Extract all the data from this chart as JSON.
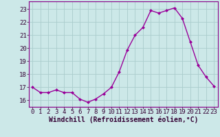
{
  "x": [
    0,
    1,
    2,
    3,
    4,
    5,
    6,
    7,
    8,
    9,
    10,
    11,
    12,
    13,
    14,
    15,
    16,
    17,
    18,
    19,
    20,
    21,
    22,
    23
  ],
  "y": [
    17.0,
    16.6,
    16.6,
    16.8,
    16.6,
    16.6,
    16.1,
    15.85,
    16.1,
    16.5,
    17.0,
    18.2,
    19.85,
    21.0,
    21.6,
    22.9,
    22.7,
    22.9,
    23.1,
    22.3,
    20.5,
    18.7,
    17.8,
    17.1
  ],
  "line_color": "#990099",
  "marker": "D",
  "marker_size": 2.0,
  "background_color": "#cce8e8",
  "grid_color": "#aacccc",
  "xlabel": "Windchill (Refroidissement éolien,°C)",
  "xlabel_fontsize": 7,
  "ylim": [
    15.5,
    23.6
  ],
  "yticks": [
    16,
    17,
    18,
    19,
    20,
    21,
    22,
    23
  ],
  "xticks": [
    0,
    1,
    2,
    3,
    4,
    5,
    6,
    7,
    8,
    9,
    10,
    11,
    12,
    13,
    14,
    15,
    16,
    17,
    18,
    19,
    20,
    21,
    22,
    23
  ],
  "tick_fontsize": 6.5,
  "line_width": 1.0,
  "spine_color": "#880088",
  "label_color": "#330033"
}
